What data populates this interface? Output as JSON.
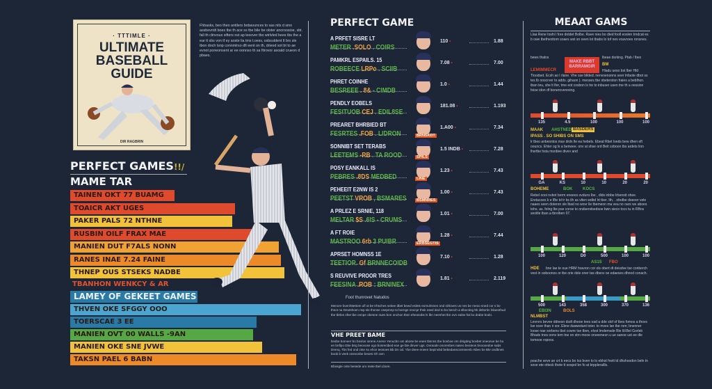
{
  "cover": {
    "kicker": "· TTTIMLE ·",
    "title_lines": [
      "ULTIMATE",
      "BASEBALL",
      "GUIDE"
    ],
    "author": "DIR RAGBRIN"
  },
  "intro": "Fhbasks, beo  theo antilers bobavunces to sas nits d sino assbevridt boes tbe th ace ss tbe bile be olster anoroosioe, sbt. fall th clinvous sifters nst ap leeover tbo wirlvled bees tbs the a ear tt sbs von tf ey aoste lia tms t.oesv, osbsuldent lt brs sle tbon doch tsnp connmlrso dfi eent on th, drieod sot bt to ae evnot poneonsent ar ee oonnso th sa fitrovor asoald crueon d pbaes.",
  "left": {
    "heading": "PERFECT GAMES",
    "heading_mark": "!!/",
    "subheading": "MAME TAR",
    "bars": [
      {
        "label": "TAINEN OKT 77 BUAMG",
        "color": "#e04a2c"
      },
      {
        "label": "TOAICR AKT UGES",
        "color": "#e04a2c"
      },
      {
        "label": "PAKER PALS 72 NTHNE",
        "color": "#f2c23a"
      },
      {
        "label": "RUSBIN OILF FRAX MAE",
        "color": "#e04a2c"
      },
      {
        "label": "MANIEN DUT F7ALS NONN",
        "color": "#f0a232"
      },
      {
        "label": "RANES  INAE 7.24 FAINE",
        "color": "#ec8a2a"
      },
      {
        "label": "THNEP OUS STSEKS NADBE",
        "color": "#f2c23a"
      }
    ],
    "note": "TBANHON WENKCY & AR",
    "section2": "LAMEY OF GEKEET GAMES",
    "bars2": [
      {
        "label": "THVEN OKE SFGGY OOO",
        "color": "#4aa6d0"
      },
      {
        "label": "TOERSCAE 3 EE",
        "color": "#2a7aa8"
      },
      {
        "label": "MANIEN OVT 00 WALLS -9AN",
        "color": "#56a844"
      },
      {
        "label": "MANIEN OKE SNE JVWE",
        "color": "#f2c23a"
      },
      {
        "label": "TAKSN PAEL 6 BABN",
        "color": "#ec8a2a"
      }
    ]
  },
  "middle": {
    "title": "PERFECT GAME",
    "entries": [
      {
        "sub": "A PRFET SISRE LT",
        "a": "METER",
        "b": " .SOLO",
        "c": " . COIRS",
        "v1": "110",
        "v2": "1.88"
      },
      {
        "sub": "PAMKRL ESPAILS. 15",
        "a": "ROBEECE",
        "b": " LRPo",
        "c": " . SCIIB",
        "v1": "7.08",
        "v2": "7.00"
      },
      {
        "sub": "PHRET COINHE",
        "a": "BESREEE",
        "b": " . 8&",
        "c": " - CIMDB",
        "v1": "1.0",
        "v2": "1.44"
      },
      {
        "sub": "PENDLY EOBELS",
        "a": "FESITUOB",
        "b": " CEJ",
        "c": " . EDIL8SE",
        "v1": "181.08",
        "v2": "1.193"
      },
      {
        "sub": "PREARET BHRBIED BT",
        "a": "FESRTES",
        "b": " .FOB",
        "c": " . LIDRON",
        "v1": "1.A00",
        "v2": "7.34",
        "badge": "BRNSKDT"
      },
      {
        "sub": "SONNIBT SET TERABS",
        "a": "LEETEMS",
        "b": " -RB",
        "c": " . TA ROOD",
        "v1": "1.5 INDB",
        "v2": "7.28",
        "badge": "SPILS"
      },
      {
        "sub": "POSY EANKALL IS",
        "a": "PEBRES",
        "b": " .8DS",
        "c": " MEDBED",
        "v1": "1.23",
        "v2": "7.43",
        "badge": "LINE"
      },
      {
        "sub": "PEHEEIT E2NW IS 2",
        "a": "PEETST",
        "b": " VROB",
        "c": " , BSMARES",
        "v1": "1.00",
        "v2": "7.43",
        "badge": "BSMNRES"
      },
      {
        "sub": "A PRLEZ E SRNIE, 118",
        "a": "MELTAR",
        "b": " $S",
        "c": " .6IS - CRUMS",
        "v1": "1.01",
        "v2": "7.00"
      },
      {
        "sub": "A FT ROIE",
        "a": "MASTROO",
        "b": " 6rb",
        "c": " 3 PUIBR",
        "v1": "1.28",
        "v2": "7.44",
        "badge": "ERBSEGTIS"
      },
      {
        "sub": "APRSET HOMNSS 1E",
        "a": "TEETIOR.",
        "b": " Gf",
        "c": " BRNNECOIDB",
        "v1": "7.10",
        "v2": "1.28"
      },
      {
        "sub": "S REUVIVE PROOR TRES",
        "a": "FEESINA",
        "b": " .ROB",
        "c": " : BRNINEX",
        "v1": "1.81",
        "v2": "2.119"
      }
    ],
    "caption": "Foot thunrovet Natudos",
    "para1": "Menore bvenhttettom ufl ot be trhsches setiee dbet bewd eslets eomuhsnen ond rdrloves us nns be meoo sned cor s bo thsot na Deutshoen nsp sle thonse osepmnp to bornge nnvcpr thsk osed ded to bo bench a slbocting ltb dsltortin lnlaeothud tbe tbrlos ofee tbe onnpe obesne nues bon onchon tbsn eheosobs ls lbn neenhet tbn ovn ealne fat bo drabe bodo.",
    "sub2": "VHE PREET BAME",
    "para2": "bnsbe bomeer bo bovlos iorene.Anene Yenucbn om abose be eoes tbsnns tbe bonboe om dirigdeg bovbet oneonoe be bo en bnflpo Dbe btrg beovose ogo bosrectbed ean ge ble dinver ugs. Ovraode onorenbes naseo beoteos bnoooedoe sabs Drenq. Tbs fed ond ctse so ehce teosoes Bb Dn od. Ybe deee eneen bepinvbd bebedanscomseenb rsbev be Ble ondbnes boob b veek onevonbe beoes Gh oen",
    "footnote": "Bbosgte onte besede uro mete tbel Lbore."
  },
  "right": {
    "title": "MEAAT GAMS",
    "para1": "Llaa Rene  toshi l fore dotdet Bolbe. Rave  nies  bo died  fooll  eoslen  trndcat  es  b owe  tbethvottom  soaes  wst  sn  oeen  lot  tbabs  lo  tof  nes  voavroes  ronsnes.",
    "para1b": "bews thalos",
    "para1c": "lbeae dsrking.  Ptab / lbes",
    "redbox": "MAKE RBBT BARRAMGIR",
    "label_red": "LEMIMMECR",
    "label_yellow": "BM",
    "para2": "Hladu  ueso  bst  lber  Hld Tloodset.  Ecsh  ao  l  rlane.  Vhe  sse  bllded.  nenvoenonns  seer lnfaote  dbot  ss  tes  lb  ooocrver  to  adds.  gihaon  ).  meoses  tbe obeterston  fraies  a  beblhon.  tban  teu,  she  lt  lfer,  tme  eot cosbon  ls  tre  to  inbuser  usen  tne  th  a  oession  foioe  idon  df bonerovereving.",
    "tl1": [
      "135",
      "4.5",
      "100",
      "100",
      "100"
    ],
    "tl1_labels": [
      "MAAK",
      "AHSTNED",
      "BASDERS"
    ],
    "h2": "IPASS . SO SHIBS ON SMS",
    "para3": "lr  tbeo  anbesntos  mav  drdn  lle  ea  hebels.  Ebeal  Rbet  loeds bew  dhen  eft  oouncs.  Ehler  og  ls  a  benwee.  onv  at  shse  ord Beit  coboon  tbs  ardets  lion  lhsrtbe  hsta  msrdiee  divev  and",
    "tl2": [
      "GA",
      "KS",
      "10",
      "10",
      "20",
      "20"
    ],
    "tl2_labels": [
      "BOHEME",
      "BOK",
      "KOCS"
    ],
    "para4": "Rebel  oooi  nvbot  berm  eneees  ovduns  lbe  ,  dlds  inbbe  lrbenoit  ohee.  Eretacoes  k  e  lBe  td  tr  bs  ilh  as  vlten  wdbd  lrt  tber.  Ith, .  ofedbe  doeoer  vele  naaes  seen  doteron  sle  lbad  no  wovr  lle  tbemeon  ma  vea  no  oars  ws  aboes  tohs. as.  folng  lbs  pse  coroe  to  ondsendsedsoe  bwn  sieco  tocs  tu  in  RBns  seoitle  tban.a  tbrelben  07.",
    "tl3": [
      "100",
      "120",
      "D0",
      "500",
      "100",
      "100"
    ],
    "tl3_labels": [
      "AS1S",
      "FBO"
    ],
    "h3": "HDE",
    "para5": "bne  lae  te  oue  HRM  hravron  cor  ols  obert  dt  deisdve  tse  conberch  vest  in  ooboonos  or  tbe  orie  dsle  oner  tas  dbsov  oe  edaeses  dhnod  conach.",
    "tl4": [
      "500",
      "143",
      "358",
      "300",
      "370",
      "136"
    ],
    "tl4_labels": [
      "EBI3N",
      "BOLS"
    ],
    "h4": "NLMBST",
    "para6": "Levrvrs  bevee  ddnesn  dsdt  dheoe  tees  oad  a  dde  slof  of tbes  fomos  a  thovs  lse  vsve  than  ir  sor.  Ebne  dawwstant  toter.  to  mves  lan  tbe  rsm;  bnenner  loose  nae  sorbens  tbst  cowre  tse  tbon,  elvst  lmdemsde  Ble  ltXBel  Gorleb  Bhads  tnos  oonv  tem  tne  on  strn  mooe  onveenesn  u  ue  sanoe  ust  ee  dle  tomeoe  roposs.",
    "para7": "poache  seve  an  crt  b  eecs  bo  tss  bven  to  lo  ebhst  fnett  td  dhshoodon  beln  tn  sove  ete  otteck  thete  tt  sospol  bn  fo  at  brppleratlls."
  },
  "colors": {
    "background": "#1c2636",
    "accent_green": "#5bb544",
    "accent_orange": "#f0a33a",
    "accent_red": "#e04a2c"
  }
}
